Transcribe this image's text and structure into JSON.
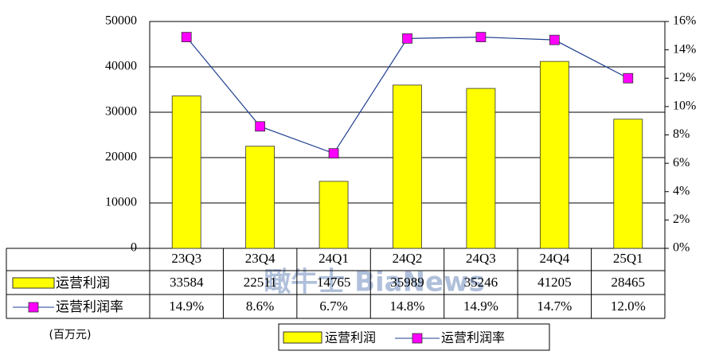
{
  "chart_data": {
    "type": "bar-line",
    "ylabel": "(百万元)",
    "watermark": "瞰牛士 BiaNews",
    "categories": [
      "23Q3",
      "23Q4",
      "24Q1",
      "24Q2",
      "24Q3",
      "24Q4",
      "25Q1"
    ],
    "series": [
      {
        "name": "运营利润",
        "type": "bar",
        "color": "#ffff00",
        "values": [
          33584,
          22511,
          14765,
          35989,
          35246,
          41205,
          28465
        ]
      },
      {
        "name": "运营利润率",
        "type": "line",
        "axis": "y2",
        "color": "#1f3f8f",
        "marker_color": "#ff00ff",
        "values": [
          14.9,
          8.6,
          6.7,
          14.8,
          14.9,
          14.7,
          12.0
        ],
        "value_labels": [
          "14.9%",
          "8.6%",
          "6.7%",
          "14.8%",
          "14.9%",
          "14.7%",
          "12.0%"
        ]
      }
    ],
    "ylim": [
      0,
      50000
    ],
    "yticks": [
      0,
      10000,
      20000,
      30000,
      40000,
      50000
    ],
    "y2lim": [
      0,
      16
    ],
    "y2ticks": [
      {
        "value": 0,
        "label": "0%"
      },
      {
        "value": 2,
        "label": "2%"
      },
      {
        "value": 4,
        "label": "4%"
      },
      {
        "value": 6,
        "label": "6%"
      },
      {
        "value": 8,
        "label": "8%"
      },
      {
        "value": 10,
        "label": "10%"
      },
      {
        "value": 12,
        "label": "12%"
      },
      {
        "value": 14,
        "label": "14%"
      },
      {
        "value": 16,
        "label": "16%"
      }
    ],
    "grid": true
  }
}
